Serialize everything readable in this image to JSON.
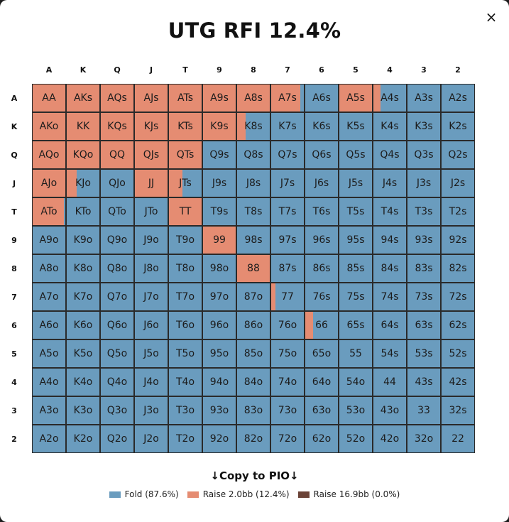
{
  "dialog": {
    "title": "UTG RFI 12.4%",
    "close_glyph": "×",
    "close_icon": "close-icon",
    "copy_label": "↓Copy to PIO↓"
  },
  "colors": {
    "fold": "#6a9cbe",
    "raise_small": "#e58c72",
    "raise_big": "#6b4337"
  },
  "ranks": [
    "A",
    "K",
    "Q",
    "J",
    "T",
    "9",
    "8",
    "7",
    "6",
    "5",
    "4",
    "3",
    "2"
  ],
  "legend": [
    {
      "label": "Fold (87.6%)",
      "color": "#6a9cbe"
    },
    {
      "label": "Raise 2.0bb (12.4%)",
      "color": "#e58c72"
    },
    {
      "label": "Raise 16.9bb (0.0%)",
      "color": "#6b4337"
    }
  ],
  "raise_frequencies": {
    "AA": 1,
    "AKs": 1,
    "AQs": 1,
    "AJs": 1,
    "ATs": 1,
    "A9s": 1,
    "A8s": 1,
    "A7s": 0.85,
    "A5s": 1,
    "A4s": 0.2,
    "AKo": 1,
    "KK": 1,
    "KQs": 1,
    "KJs": 1,
    "KTs": 1,
    "K9s": 1,
    "K8s": 0.25,
    "AQo": 1,
    "KQo": 1,
    "QQ": 1,
    "QJs": 1,
    "QTs": 1,
    "AJo": 1,
    "KJo": 0.3,
    "JJ": 1,
    "JTs": 0.4,
    "ATo": 0.92,
    "TT": 1,
    "99": 1,
    "88": 1,
    "77": 0.12,
    "66": 0.22
  },
  "hands": [
    [
      "AA",
      "AKs",
      "AQs",
      "AJs",
      "ATs",
      "A9s",
      "A8s",
      "A7s",
      "A6s",
      "A5s",
      "A4s",
      "A3s",
      "A2s"
    ],
    [
      "AKo",
      "KK",
      "KQs",
      "KJs",
      "KTs",
      "K9s",
      "K8s",
      "K7s",
      "K6s",
      "K5s",
      "K4s",
      "K3s",
      "K2s"
    ],
    [
      "AQo",
      "KQo",
      "QQ",
      "QJs",
      "QTs",
      "Q9s",
      "Q8s",
      "Q7s",
      "Q6s",
      "Q5s",
      "Q4s",
      "Q3s",
      "Q2s"
    ],
    [
      "AJo",
      "KJo",
      "QJo",
      "JJ",
      "JTs",
      "J9s",
      "J8s",
      "J7s",
      "J6s",
      "J5s",
      "J4s",
      "J3s",
      "J2s"
    ],
    [
      "ATo",
      "KTo",
      "QTo",
      "JTo",
      "TT",
      "T9s",
      "T8s",
      "T7s",
      "T6s",
      "T5s",
      "T4s",
      "T3s",
      "T2s"
    ],
    [
      "A9o",
      "K9o",
      "Q9o",
      "J9o",
      "T9o",
      "99",
      "98s",
      "97s",
      "96s",
      "95s",
      "94s",
      "93s",
      "92s"
    ],
    [
      "A8o",
      "K8o",
      "Q8o",
      "J8o",
      "T8o",
      "98o",
      "88",
      "87s",
      "86s",
      "85s",
      "84s",
      "83s",
      "82s"
    ],
    [
      "A7o",
      "K7o",
      "Q7o",
      "J7o",
      "T7o",
      "97o",
      "87o",
      "77",
      "76s",
      "75s",
      "74s",
      "73s",
      "72s"
    ],
    [
      "A6o",
      "K6o",
      "Q6o",
      "J6o",
      "T6o",
      "96o",
      "86o",
      "76o",
      "66",
      "65s",
      "64s",
      "63s",
      "62s"
    ],
    [
      "A5o",
      "K5o",
      "Q5o",
      "J5o",
      "T5o",
      "95o",
      "85o",
      "75o",
      "65o",
      "55",
      "54s",
      "53s",
      "52s"
    ],
    [
      "A4o",
      "K4o",
      "Q4o",
      "J4o",
      "T4o",
      "94o",
      "84o",
      "74o",
      "64o",
      "54o",
      "44",
      "43s",
      "42s"
    ],
    [
      "A3o",
      "K3o",
      "Q3o",
      "J3o",
      "T3o",
      "93o",
      "83o",
      "73o",
      "63o",
      "53o",
      "43o",
      "33",
      "32s"
    ],
    [
      "A2o",
      "K2o",
      "Q2o",
      "J2o",
      "T2o",
      "92o",
      "82o",
      "72o",
      "62o",
      "52o",
      "42o",
      "32o",
      "22"
    ]
  ]
}
